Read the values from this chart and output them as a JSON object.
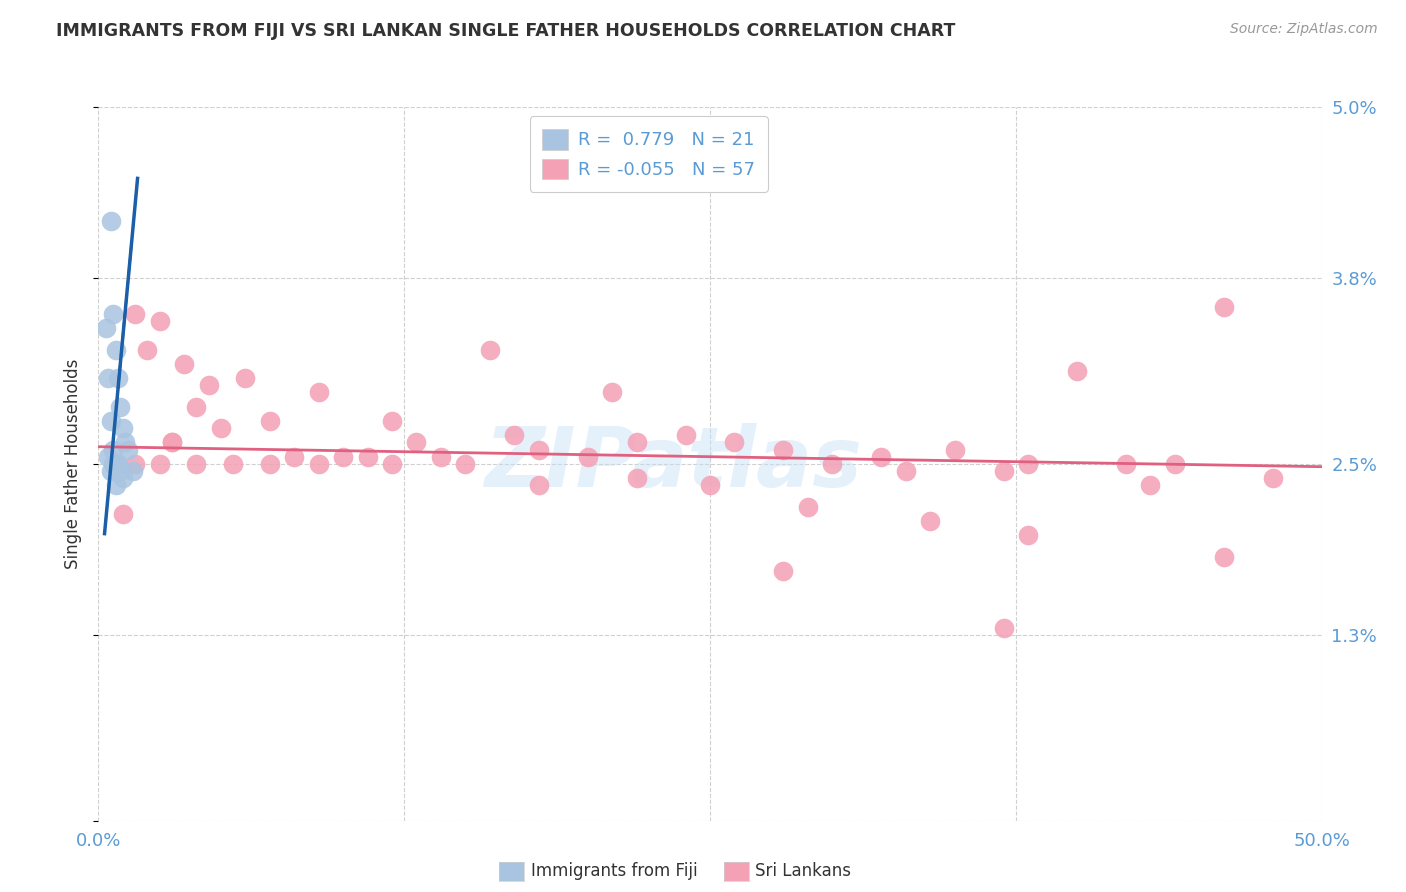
{
  "title": "IMMIGRANTS FROM FIJI VS SRI LANKAN SINGLE FATHER HOUSEHOLDS CORRELATION CHART",
  "source": "Source: ZipAtlas.com",
  "ylabel": "Single Father Households",
  "yticks": [
    0.0,
    1.3,
    2.5,
    3.8,
    5.0
  ],
  "ytick_labels": [
    "",
    "1.3%",
    "2.5%",
    "3.8%",
    "5.0%"
  ],
  "xlim": [
    0.0,
    50.0
  ],
  "ylim": [
    0.0,
    5.0
  ],
  "watermark": "ZIPatlas",
  "legend_fiji_R": "0.779",
  "legend_fiji_N": "21",
  "legend_sri_R": "-0.055",
  "legend_sri_N": "57",
  "fiji_color": "#a8c4e0",
  "sri_color": "#f4a0b5",
  "fiji_line_color": "#1a5fa8",
  "sri_line_color": "#e06080",
  "fiji_x": [
    0.3,
    0.5,
    0.6,
    0.7,
    0.8,
    0.9,
    1.0,
    1.1,
    1.2,
    1.4,
    0.4,
    0.5,
    0.6,
    0.7,
    0.8,
    0.9,
    1.0,
    0.4,
    0.6,
    0.5,
    0.7
  ],
  "fiji_y": [
    3.45,
    4.2,
    3.55,
    3.3,
    3.1,
    2.9,
    2.75,
    2.65,
    2.6,
    2.45,
    3.1,
    2.8,
    2.6,
    2.5,
    2.5,
    2.45,
    2.4,
    2.55,
    2.5,
    2.45,
    2.35
  ],
  "sri_x": [
    1.0,
    1.5,
    2.0,
    2.5,
    3.0,
    3.5,
    4.0,
    4.5,
    5.0,
    6.0,
    7.0,
    8.0,
    9.0,
    10.0,
    11.0,
    12.0,
    13.0,
    14.0,
    16.0,
    17.0,
    18.0,
    20.0,
    21.0,
    22.0,
    24.0,
    26.0,
    28.0,
    30.0,
    32.0,
    33.0,
    35.0,
    37.0,
    38.0,
    40.0,
    42.0,
    44.0,
    46.0,
    48.0,
    1.5,
    2.5,
    3.0,
    4.0,
    5.5,
    7.0,
    9.0,
    12.0,
    15.0,
    18.0,
    22.0,
    25.0,
    29.0,
    34.0,
    38.0,
    43.0,
    46.0,
    28.0,
    37.0
  ],
  "sri_y": [
    2.15,
    3.55,
    3.3,
    3.5,
    2.65,
    3.2,
    2.9,
    3.05,
    2.75,
    3.1,
    2.8,
    2.55,
    3.0,
    2.55,
    2.55,
    2.8,
    2.65,
    2.55,
    3.3,
    2.7,
    2.6,
    2.55,
    3.0,
    2.65,
    2.7,
    2.65,
    2.6,
    2.5,
    2.55,
    2.45,
    2.6,
    2.45,
    2.5,
    3.15,
    2.5,
    2.5,
    3.6,
    2.4,
    2.5,
    2.5,
    2.65,
    2.5,
    2.5,
    2.5,
    2.5,
    2.5,
    2.5,
    2.35,
    2.4,
    2.35,
    2.2,
    2.1,
    2.0,
    2.35,
    1.85,
    1.75,
    1.35
  ],
  "sri_line_x0": 0.0,
  "sri_line_y0": 2.62,
  "sri_line_x1": 50.0,
  "sri_line_y1": 2.48,
  "fiji_line_x0": 0.0,
  "fiji_line_y0": 1.55,
  "fiji_line_x1": 1.6,
  "fiji_line_y1": 4.5,
  "title_color": "#333333",
  "tick_label_color": "#5b9bd5",
  "grid_color": "#d0d0d0",
  "background_color": "#ffffff",
  "bottom_legend_fiji_label": "Immigrants from Fiji",
  "bottom_legend_sri_label": "Sri Lankans"
}
